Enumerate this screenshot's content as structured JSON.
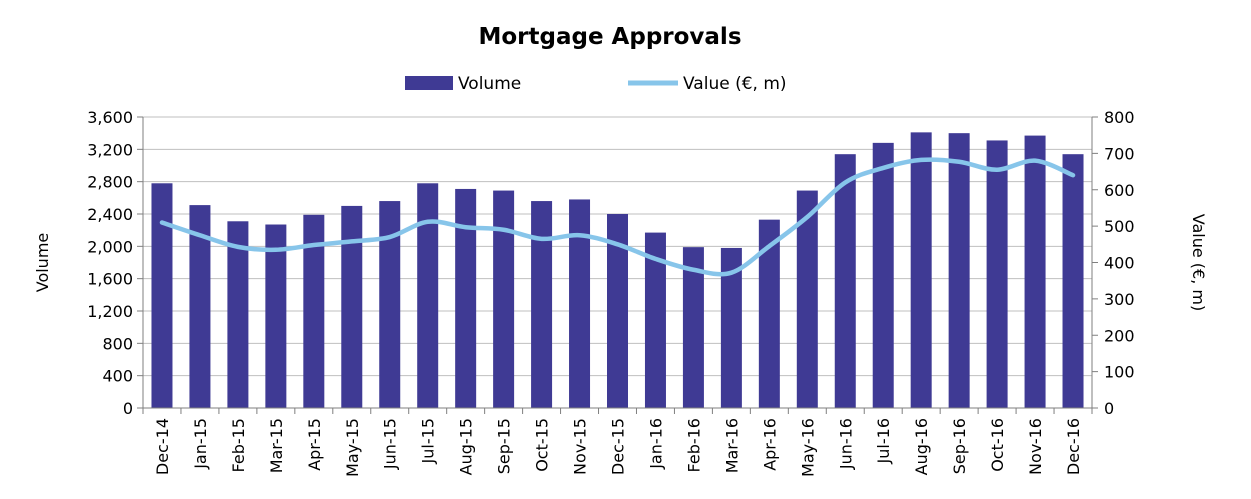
{
  "chart_data": {
    "type": "bar",
    "title": "Mortgage Approvals",
    "categories": [
      "Dec-14",
      "Jan-15",
      "Feb-15",
      "Mar-15",
      "Apr-15",
      "May-15",
      "Jun-15",
      "Jul-15",
      "Aug-15",
      "Sep-15",
      "Oct-15",
      "Nov-15",
      "Dec-15",
      "Jan-16",
      "Feb-16",
      "Mar-16",
      "Apr-16",
      "May-16",
      "Jun-16",
      "Jul-16",
      "Aug-16",
      "Sep-16",
      "Oct-16",
      "Nov-16",
      "Dec-16"
    ],
    "series": [
      {
        "name": "Volume",
        "type": "bar",
        "axis": "left",
        "color": "#3f3a94",
        "values": [
          2780,
          2510,
          2310,
          2270,
          2390,
          2500,
          2560,
          2780,
          2710,
          2690,
          2560,
          2580,
          2400,
          2170,
          1990,
          1980,
          2330,
          2690,
          3140,
          3280,
          3410,
          3400,
          3310,
          3370,
          3140
        ]
      },
      {
        "name": "Value (€, m)",
        "type": "line",
        "axis": "right",
        "color": "#87c5ea",
        "values": [
          510,
          475,
          443,
          435,
          448,
          458,
          470,
          512,
          497,
          490,
          465,
          475,
          450,
          410,
          380,
          372,
          445,
          525,
          620,
          660,
          682,
          677,
          655,
          680,
          640
        ]
      }
    ],
    "ylabel": "Volume",
    "y2label": "Value (€, m)",
    "ylim": [
      0,
      3600
    ],
    "y2lim": [
      0,
      800
    ],
    "yticks": [
      "0",
      "400",
      "800",
      "1,200",
      "1,600",
      "2,000",
      "2,400",
      "2,800",
      "3,200",
      "3,600"
    ],
    "y2ticks": [
      "0",
      "100",
      "200",
      "300",
      "400",
      "500",
      "600",
      "700",
      "800"
    ],
    "grid": true,
    "legend": "top-center"
  }
}
